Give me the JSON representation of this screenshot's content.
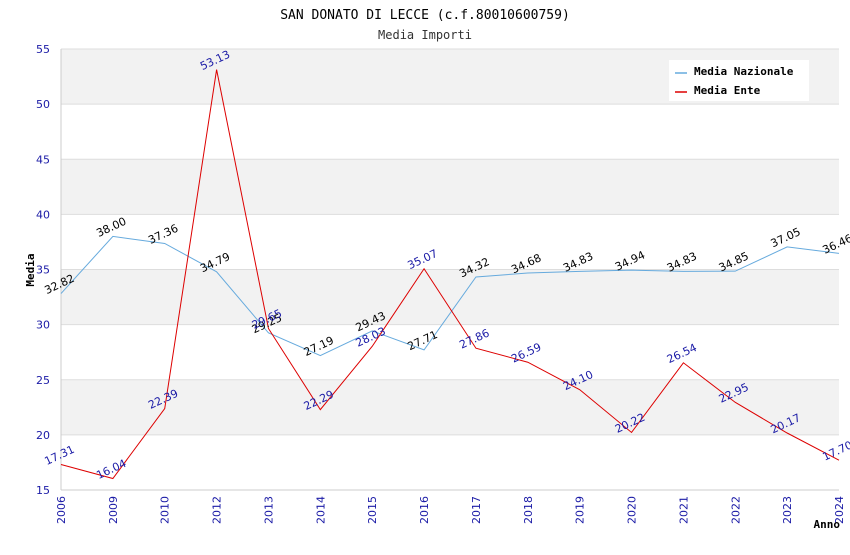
{
  "chart_data": {
    "type": "line",
    "title": "SAN DONATO DI LECCE (c.f.80010600759)",
    "subtitle": "Media Importi",
    "xlabel": "Anno",
    "ylabel": "Media",
    "categories": [
      "2006",
      "2009",
      "2010",
      "2012",
      "2013",
      "2014",
      "2015",
      "2016",
      "2017",
      "2018",
      "2019",
      "2020",
      "2021",
      "2022",
      "2023",
      "2024"
    ],
    "ylim": [
      15,
      55
    ],
    "yticks": [
      15,
      20,
      25,
      30,
      35,
      40,
      45,
      50,
      55
    ],
    "legend_position": "top-right",
    "series": [
      {
        "name": "Media Nazionale",
        "color": "#66aadd",
        "label_color": "#000000",
        "values": [
          32.82,
          38.0,
          37.36,
          34.79,
          29.25,
          27.19,
          29.43,
          27.71,
          34.32,
          34.68,
          34.83,
          34.94,
          34.83,
          34.85,
          37.05,
          36.46
        ],
        "labels": [
          "32.82",
          "38.00",
          "37.36",
          "34.79",
          "29.25",
          "27.19",
          "29.43",
          "27.71",
          "34.32",
          "34.68",
          "34.83",
          "34.94",
          "34.83",
          "34.85",
          "37.05",
          "36.46"
        ]
      },
      {
        "name": "Media Ente",
        "color": "#dd0000",
        "label_color": "#1a1aa6",
        "values": [
          17.31,
          16.04,
          22.39,
          53.13,
          29.65,
          22.29,
          28.03,
          35.07,
          27.86,
          26.59,
          24.1,
          20.22,
          26.54,
          22.95,
          20.17,
          17.7
        ],
        "labels": [
          "17.31",
          "16.04",
          "22.39",
          "53.13",
          "29.65",
          "22.29",
          "28.03",
          "35.07",
          "27.86",
          "26.59",
          "24.10",
          "20.22",
          "26.54",
          "22.95",
          "20.17",
          "17.70"
        ]
      }
    ]
  },
  "colors": {
    "band": "#f2f2f2",
    "gridline": "#dddddd",
    "axis": "#cccccc"
  }
}
